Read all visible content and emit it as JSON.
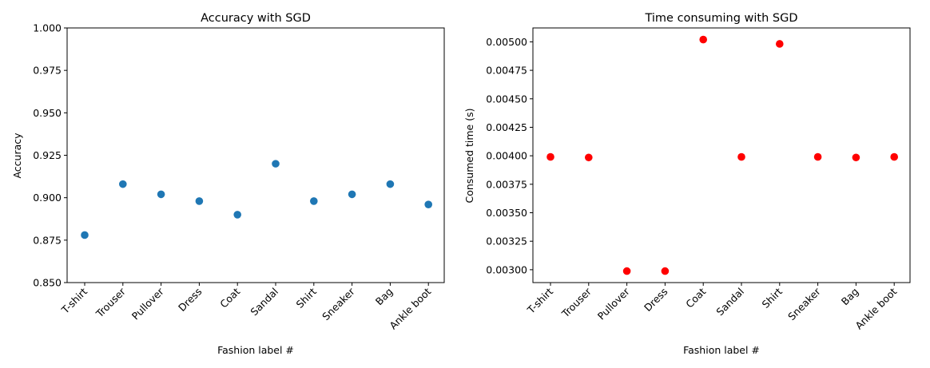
{
  "chart_data": [
    {
      "type": "scatter",
      "title": "Accuracy with SGD",
      "xlabel": "Fashion label #",
      "ylabel": "Accuracy",
      "categories": [
        "T-shirt",
        "Trouser",
        "Pullover",
        "Dress",
        "Coat",
        "Sandal",
        "Shirt",
        "Sneaker",
        "Bag",
        "Ankle boot"
      ],
      "values": [
        0.878,
        0.908,
        0.902,
        0.898,
        0.89,
        0.92,
        0.898,
        0.902,
        0.908,
        0.896
      ],
      "ylim": [
        0.85,
        1.0
      ],
      "yticks": [
        "0.850",
        "0.875",
        "0.900",
        "0.925",
        "0.950",
        "0.975",
        "1.000"
      ],
      "ytick_values": [
        0.85,
        0.875,
        0.9,
        0.925,
        0.95,
        0.975,
        1.0
      ],
      "marker_color": "#1f77b4",
      "grid": false
    },
    {
      "type": "scatter",
      "title": "Time consuming with SGD",
      "xlabel": "Fashion label #",
      "ylabel": "Consumed time (s)",
      "categories": [
        "T-shirt",
        "Trouser",
        "Pullover",
        "Dress",
        "Coat",
        "Sandal",
        "Shirt",
        "Sneaker",
        "Bag",
        "Ankle boot"
      ],
      "values": [
        0.00399,
        0.003985,
        0.002988,
        0.002988,
        0.00502,
        0.00399,
        0.004982,
        0.00399,
        0.003985,
        0.00399
      ],
      "ylim": [
        0.002887,
        0.005122
      ],
      "yticks": [
        "0.00300",
        "0.00325",
        "0.00350",
        "0.00375",
        "0.00400",
        "0.00425",
        "0.00450",
        "0.00475",
        "0.00500"
      ],
      "ytick_values": [
        0.003,
        0.00325,
        0.0035,
        0.00375,
        0.004,
        0.00425,
        0.0045,
        0.00475,
        0.005
      ],
      "marker_color": "#ff0000",
      "grid": false
    }
  ]
}
